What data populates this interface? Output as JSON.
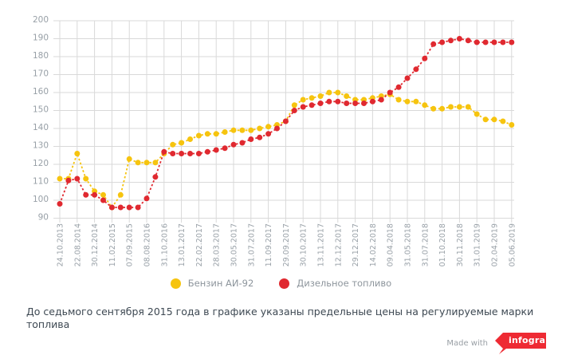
{
  "chart_data": {
    "type": "line",
    "title": "",
    "xlabel": "",
    "ylabel": "",
    "ylim": [
      90,
      200
    ],
    "y_step": 10,
    "grid": true,
    "legend_position": "bottom",
    "line_style": "dashed-with-round-markers",
    "points_per_label": 2,
    "x_tick_labels": [
      "24.10.2013",
      "22.08.2014",
      "30.12.2014",
      "11.02.2015",
      "07.09.2015",
      "08.08.2016",
      "31.10.2016",
      "13.01.2017",
      "22.02.2017",
      "28.03.2017",
      "30.05.2017",
      "31.07.2017",
      "11.09.2017",
      "29.09.2017",
      "30.10.2017",
      "13.11.2017",
      "12.12.2017",
      "29.12.2017",
      "14.02.2018",
      "09.04.2018",
      "31.05.2018",
      "31.07.2018",
      "01.10.2018",
      "30.11.2018",
      "31.01.2019",
      "02.04.2019",
      "05.06.2019"
    ],
    "series": [
      {
        "name": "Бензин АИ-92",
        "color": "#f6c40f",
        "values": [
          112,
          112,
          126,
          112,
          105,
          103,
          96,
          103,
          123,
          121,
          121,
          121,
          126,
          131,
          132,
          134,
          136,
          137,
          137,
          138,
          139,
          139,
          139,
          140,
          141,
          142,
          144,
          153,
          156,
          157,
          158,
          160,
          160,
          158,
          156,
          156,
          157,
          158,
          159,
          156,
          155,
          155,
          153,
          151,
          151,
          152,
          152,
          152,
          148,
          145,
          145,
          144,
          142
        ]
      },
      {
        "name": "Дизельное топливо",
        "color": "#e02930",
        "values": [
          98,
          111,
          112,
          103,
          103,
          100,
          96,
          96,
          96,
          96,
          101,
          113,
          127,
          126,
          126,
          126,
          126,
          127,
          128,
          129,
          131,
          132,
          134,
          135,
          137,
          140,
          144,
          150,
          152,
          153,
          154,
          155,
          155,
          154,
          154,
          154,
          155,
          156,
          160,
          163,
          168,
          173,
          179,
          187,
          188,
          189,
          190,
          189,
          188,
          188,
          188,
          188,
          188
        ]
      }
    ],
    "colors": {
      "gridline": "#d9d9d9",
      "tick_text": "#98a0a7"
    }
  },
  "note": "До седьмого сентября 2015 года в графике указаны предельные цены на регулируемые марки топлива",
  "credit": {
    "made_with": "Made with",
    "brand": "infogram",
    "brand_color": "#ee2a33"
  }
}
